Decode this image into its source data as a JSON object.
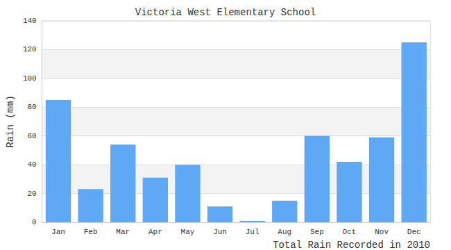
{
  "chart_data": {
    "type": "bar",
    "title": "Victoria West Elementary School",
    "xlabel": "Total Rain Recorded in 2010",
    "ylabel": "Rain (mm)",
    "categories": [
      "Jan",
      "Feb",
      "Mar",
      "Apr",
      "May",
      "Jun",
      "Jul",
      "Aug",
      "Sep",
      "Oct",
      "Nov",
      "Dec"
    ],
    "values": [
      85,
      23,
      54,
      31,
      40,
      11,
      1,
      15,
      60,
      42,
      59,
      125
    ],
    "color": "#5fa8f5",
    "ylim": [
      0,
      140
    ],
    "yticks": [
      0,
      20,
      40,
      60,
      80,
      100,
      120,
      140
    ],
    "grid": true
  }
}
